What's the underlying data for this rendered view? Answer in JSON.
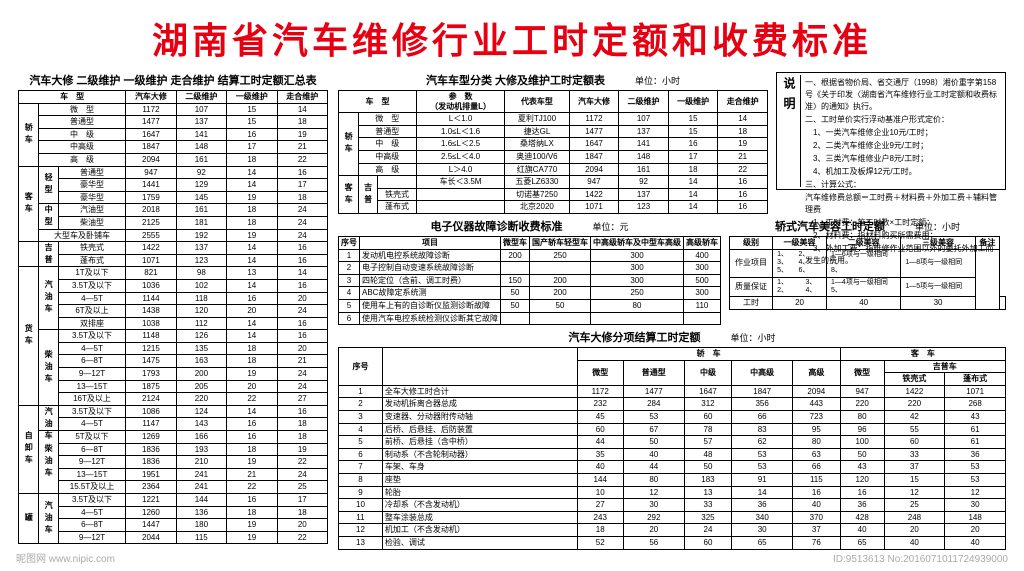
{
  "main_title": "湖南省汽车维修行业工时定额和收费标准",
  "table1": {
    "title": "汽车大修 二级维护 一级维护 走合维护 结算工时定额汇总表",
    "header": [
      "车　型",
      "汽车大修",
      "二级维护",
      "一级维护",
      "走合维护"
    ],
    "groups": [
      {
        "label": "轿车",
        "rows": [
          [
            "微　型",
            "1172",
            "107",
            "15",
            "14"
          ],
          [
            "普通型",
            "1477",
            "137",
            "15",
            "18"
          ],
          [
            "中　级",
            "1647",
            "141",
            "16",
            "19"
          ],
          [
            "中高级",
            "1847",
            "148",
            "17",
            "21"
          ],
          [
            "高　级",
            "2094",
            "161",
            "18",
            "22"
          ]
        ]
      },
      {
        "label": "客车",
        "sub": [
          {
            "label": "轻型",
            "rows": [
              [
                "普通型",
                "947",
                "92",
                "14",
                "16"
              ],
              [
                "豪华型",
                "1441",
                "129",
                "14",
                "17"
              ],
              [
                "豪华型",
                "1759",
                "145",
                "19",
                "18"
              ]
            ]
          },
          {
            "label": "中型",
            "rows": [
              [
                "汽油型",
                "2018",
                "161",
                "18",
                "24"
              ],
              [
                "柴油型",
                "2125",
                "181",
                "18",
                "24"
              ]
            ]
          }
        ],
        "extra": [
          [
            "大型车及卧铺车",
            "2555",
            "192",
            "19",
            "24"
          ]
        ]
      },
      {
        "label": "",
        "sub2": [
          {
            "label": "吉普",
            "rows": [
              [
                "铁壳式",
                "1422",
                "137",
                "14",
                "16"
              ],
              [
                "蓬布式",
                "1071",
                "123",
                "14",
                "16"
              ]
            ]
          }
        ]
      },
      {
        "label": "货车",
        "sub": [
          {
            "label": "汽油车",
            "rows": [
              [
                "1T及以下",
                "821",
                "98",
                "13",
                "14"
              ],
              [
                "3.5T及以下",
                "1036",
                "102",
                "14",
                "16"
              ],
              [
                "4—5T",
                "1144",
                "118",
                "16",
                "20"
              ],
              [
                "6T及以上",
                "1438",
                "120",
                "20",
                "24"
              ],
              [
                "双排座",
                "1038",
                "112",
                "14",
                "16"
              ]
            ]
          },
          {
            "label": "柴油车",
            "rows": [
              [
                "3.5T及以下",
                "1148",
                "126",
                "14",
                "16"
              ],
              [
                "4—5T",
                "1215",
                "135",
                "18",
                "20"
              ],
              [
                "6—8T",
                "1475",
                "163",
                "18",
                "21"
              ],
              [
                "9—12T",
                "1793",
                "200",
                "19",
                "24"
              ],
              [
                "13—15T",
                "1875",
                "205",
                "20",
                "24"
              ],
              [
                "16T及以上",
                "2124",
                "220",
                "22",
                "27"
              ]
            ]
          }
        ]
      },
      {
        "label": "自卸车",
        "sub": [
          {
            "label": "汽油车",
            "rows": [
              [
                "3.5T及以下",
                "1086",
                "124",
                "14",
                "16"
              ],
              [
                "4—5T",
                "1147",
                "143",
                "16",
                "18"
              ]
            ]
          },
          {
            "label": "柴油车",
            "rows": [
              [
                "5T及以下",
                "1269",
                "166",
                "16",
                "18"
              ],
              [
                "6—8T",
                "1836",
                "193",
                "18",
                "19"
              ],
              [
                "9—12T",
                "1836",
                "210",
                "19",
                "22"
              ],
              [
                "13—15T",
                "1951",
                "241",
                "21",
                "24"
              ],
              [
                "15.5T及以上",
                "2364",
                "241",
                "22",
                "25"
              ]
            ]
          }
        ]
      },
      {
        "label": "罐",
        "sub": [
          {
            "label": "汽油车",
            "rows": [
              [
                "3.5T及以下",
                "1221",
                "144",
                "16",
                "17"
              ],
              [
                "4—5T",
                "1260",
                "136",
                "18",
                "18"
              ],
              [
                "6—8T",
                "1447",
                "180",
                "19",
                "20"
              ],
              [
                "9—12T",
                "2044",
                "115",
                "19",
                "22"
              ]
            ]
          }
        ]
      }
    ]
  },
  "table2": {
    "title": "汽车车型分类 大修及维护工时定额表",
    "unit": "单位：小时",
    "header": [
      "车　型",
      "参　数\n（发动机排量L）",
      "代表车型",
      "汽车大修",
      "二级维护",
      "一级维护",
      "走合维护"
    ],
    "groups": [
      {
        "label": "轿车",
        "rows": [
          [
            "微　型",
            "L＜1.0",
            "夏利TJ100",
            "1172",
            "107",
            "15",
            "14"
          ],
          [
            "普通型",
            "1.0≤L＜1.6",
            "捷达GL",
            "1477",
            "137",
            "15",
            "18"
          ],
          [
            "中　级",
            "1.6≤L＜2.5",
            "桑塔纳LX",
            "1647",
            "141",
            "16",
            "19"
          ],
          [
            "中高级",
            "2.5≤L＜4.0",
            "奥迪100/V6",
            "1847",
            "148",
            "17",
            "21"
          ],
          [
            "高　级",
            "L＞4.0",
            "红旗CA770",
            "2094",
            "161",
            "18",
            "22"
          ]
        ]
      },
      {
        "label": "客车",
        "sub": [
          {
            "label": "吉普",
            "rows": [
              [
                "",
                "车长＜3.5M",
                "五菱LZ6330",
                "947",
                "92",
                "14",
                "16"
              ],
              [
                "铁壳式",
                "",
                "切诺基7250",
                "1422",
                "137",
                "14",
                "16"
              ],
              [
                "蓬布式",
                "",
                "北京2020",
                "1071",
                "123",
                "14",
                "16"
              ]
            ]
          }
        ]
      }
    ]
  },
  "explain": {
    "label": "说明",
    "lines": [
      "一、根据省物价局、省交通厅（1998）湘价重字第158号《关于印发〈湖南省汽车维修行业工时定额和收费标准〉的通知》执行。",
      "二、工时单价实行浮动基准户形式定价：",
      "　1、一类汽车维修企业10元/工时；",
      "　2、二类汽车维修企业9元/工时；",
      "　3、三类汽车维修业户8元/工时；",
      "　4、机加工及板焊12元/工时。",
      "三、计算公式：",
      "汽车维修费总额＝工时费＋材料费＋外加工费＋辅料管理费",
      "　1、工时费：施工时数×工时定额；",
      "　2、材料费：指材料购买所需费用；",
      "　3、外加工费：指维修作业范围以外的委托外加工而发生的费用。"
    ]
  },
  "table3": {
    "title": "电子仪器故障诊断收费标准",
    "unit": "单位：元",
    "header": [
      "序号",
      "项目",
      "微型车",
      "国产轿车轻型车",
      "中高级轿车及中型车高级",
      "高级轿车"
    ],
    "rows": [
      [
        "1",
        "发动机电控系统故障诊断",
        "200",
        "250",
        "300",
        "400"
      ],
      [
        "2",
        "电子控制自动变速系统故障诊断",
        "",
        "",
        "300",
        "300"
      ],
      [
        "3",
        "四轮定位（含前、调工时费）",
        "150",
        "200",
        "300",
        "500"
      ],
      [
        "4",
        "ABC故障定系统测",
        "50",
        "200",
        "250",
        "300"
      ],
      [
        "5",
        "使用车上有的自诊断仪监测诊断故障",
        "50",
        "50",
        "80",
        "110"
      ],
      [
        "6",
        "使用汽车电控系统检测仪诊断其它故障",
        "",
        "",
        "",
        ""
      ]
    ]
  },
  "table4": {
    "title": "轿式汽车美容工时定额",
    "unit": "单位：小时",
    "header": [
      "级别",
      "一级美容",
      "二级美容",
      "三级美容",
      "备注"
    ],
    "row1_labels": [
      "作业项目",
      "质量保证"
    ],
    "row1_c1": "1、　　2、\n3、　　4、\n5、　　6、",
    "row1_c2": "1—6项与一级相同\n7、\n8、",
    "row1_c3": "1—8项与一级相同",
    "row2_c1": "1、　　　3、\n2、　　　4、",
    "row2_c2": "1—4项与一级相同\n5、",
    "row2_c3": "1—5项与一级相同",
    "footer": [
      "工时",
      "20",
      "40",
      "30",
      ""
    ]
  },
  "table5": {
    "title": "汽车大修分项结算工时定额",
    "unit": "单位：小时",
    "header_top": [
      "序号",
      "",
      "轿　车",
      "客　车"
    ],
    "header_sub_car": [
      "微型",
      "普通型",
      "中级",
      "中高级",
      "高级"
    ],
    "header_sub_bus": [
      "微型",
      "吉普车",
      ""
    ],
    "header_sub_bus2": [
      "",
      "铁壳式",
      "蓬布式"
    ],
    "rows": [
      [
        "1",
        "全车大修工时合计",
        "1172",
        "1477",
        "1647",
        "1847",
        "2094",
        "947",
        "1422",
        "1071"
      ],
      [
        "2",
        "发动机拆离合器总成",
        "232",
        "284",
        "312",
        "356",
        "443",
        "220",
        "220",
        "268"
      ],
      [
        "3",
        "变速器、分动器附传动轴",
        "45",
        "53",
        "60",
        "66",
        "723",
        "80",
        "42",
        "43"
      ],
      [
        "4",
        "后桥、后悬挂、后防装置",
        "60",
        "67",
        "78",
        "83",
        "95",
        "96",
        "55",
        "61"
      ],
      [
        "5",
        "前桥、后悬挂（含中桥）",
        "44",
        "50",
        "57",
        "62",
        "80",
        "100",
        "60",
        "61"
      ],
      [
        "6",
        "制动系（不含轮制动器）",
        "35",
        "40",
        "48",
        "53",
        "63",
        "50",
        "33",
        "36"
      ],
      [
        "7",
        "车架、车身",
        "40",
        "44",
        "50",
        "53",
        "66",
        "43",
        "37",
        "53"
      ],
      [
        "8",
        "座垫",
        "144",
        "80",
        "183",
        "91",
        "115",
        "120",
        "15",
        "53"
      ],
      [
        "9",
        "轮胎",
        "10",
        "12",
        "13",
        "14",
        "16",
        "16",
        "12",
        "12"
      ],
      [
        "10",
        "冷却系（不含发动机）",
        "27",
        "30",
        "33",
        "36",
        "40",
        "36",
        "25",
        "30"
      ],
      [
        "11",
        "整车涂装总成",
        "243",
        "292",
        "325",
        "340",
        "370",
        "428",
        "248",
        "148"
      ],
      [
        "12",
        "机加工（不含发动机）",
        "18",
        "20",
        "24",
        "30",
        "37",
        "40",
        "20",
        "20"
      ],
      [
        "13",
        "检验、调试",
        "52",
        "56",
        "60",
        "65",
        "76",
        "65",
        "40",
        "40"
      ]
    ]
  },
  "watermark_left": "昵图网 www.nipic.com",
  "watermark_right": "ID:9513613 No:2016071011724939000"
}
